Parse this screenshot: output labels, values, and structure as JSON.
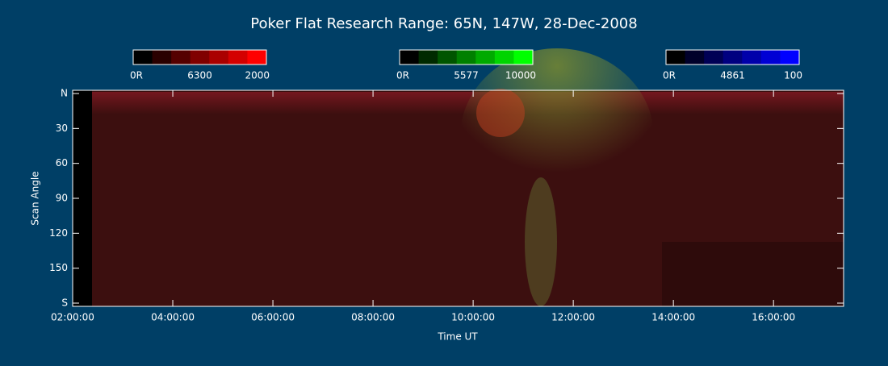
{
  "chart_data": {
    "type": "keogram",
    "title": "Poker Flat Research Range: 65N, 147W, 28-Dec-2008",
    "x_label": "Time UT",
    "y_label": "Scan Angle",
    "xlim": [
      2,
      17.4
    ],
    "xticks": [
      {
        "value": 2,
        "label": "02:00:00"
      },
      {
        "value": 4,
        "label": "04:00:00"
      },
      {
        "value": 6,
        "label": "06:00:00"
      },
      {
        "value": 8,
        "label": "08:00:00"
      },
      {
        "value": 10,
        "label": "10:00:00"
      },
      {
        "value": 12,
        "label": "12:00:00"
      },
      {
        "value": 14,
        "label": "14:00:00"
      },
      {
        "value": 16,
        "label": "16:00:00"
      }
    ],
    "ylim": [
      0,
      180
    ],
    "yticks": [
      {
        "value": 0,
        "label": "N"
      },
      30,
      60,
      90,
      120,
      150,
      {
        "value": 180,
        "label": "S"
      }
    ],
    "colorbars": [
      {
        "colors": [
          "#000000",
          "#2a0000",
          "#550000",
          "#800000",
          "#aa0000",
          "#d40000",
          "#ff0000"
        ],
        "labels": [
          "0R",
          "6300",
          "2000"
        ]
      },
      {
        "colors": [
          "#000000",
          "#002a00",
          "#005500",
          "#008000",
          "#00aa00",
          "#00d400",
          "#00ff00"
        ],
        "labels": [
          "0R",
          "5577",
          "10000"
        ]
      },
      {
        "colors": [
          "#000000",
          "#00002a",
          "#000055",
          "#000080",
          "#0000aa",
          "#0000d4",
          "#0000ff"
        ],
        "labels": [
          "0R",
          "4861",
          "100"
        ]
      }
    ]
  }
}
